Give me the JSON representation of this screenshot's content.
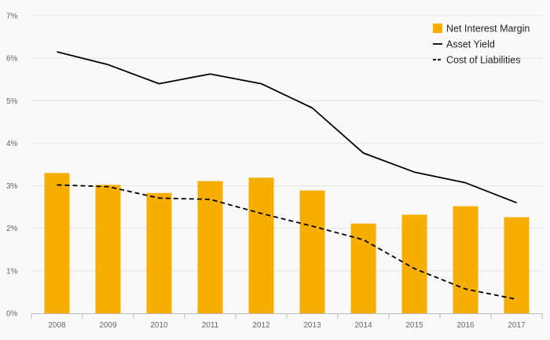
{
  "chart_data": {
    "type": "bar",
    "categories": [
      "2008",
      "2009",
      "2010",
      "2011",
      "2012",
      "2013",
      "2014",
      "2015",
      "2016",
      "2017"
    ],
    "series": [
      {
        "name": "Net Interest Margin",
        "kind": "bar",
        "values": [
          3.3,
          3.02,
          2.83,
          3.11,
          3.19,
          2.89,
          2.11,
          2.32,
          2.52,
          2.26
        ]
      },
      {
        "name": "Asset Yield",
        "kind": "line",
        "style": "solid",
        "values": [
          6.15,
          5.85,
          5.4,
          5.63,
          5.4,
          4.83,
          3.77,
          3.32,
          3.07,
          2.6
        ]
      },
      {
        "name": "Cost of Liabilities",
        "kind": "line",
        "style": "dashed",
        "values": [
          3.02,
          2.98,
          2.71,
          2.68,
          2.35,
          2.05,
          1.73,
          1.05,
          0.57,
          0.33
        ]
      }
    ],
    "ylim": [
      0,
      7
    ],
    "yticks": [
      0,
      1,
      2,
      3,
      4,
      5,
      6,
      7
    ],
    "ytick_format": "%",
    "grid": "horizontal",
    "legend_position": "top-right",
    "colors": {
      "bar": "#f8ae00",
      "line": "#000000",
      "grid": "#e3e3e3",
      "axis": "#bbbbbb",
      "background": "#f9f9f9"
    }
  }
}
